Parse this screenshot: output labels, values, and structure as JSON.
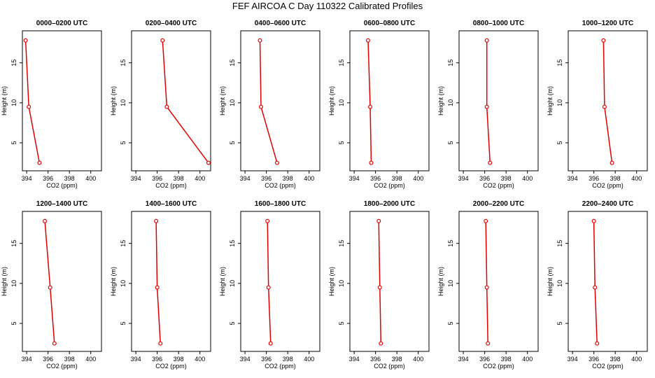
{
  "title": "FEF AIRCOA C  Day 110322  Calibrated Profiles",
  "chart_data": {
    "type": "line",
    "xlabel": "CO2 (ppm)",
    "ylabel": "Height (m)",
    "xlim": [
      393.6,
      401.0
    ],
    "ylim": [
      1.5,
      19.0
    ],
    "xticks": [
      394,
      396,
      398,
      400
    ],
    "yticks": [
      5,
      10,
      15
    ],
    "series_color": "#e00000",
    "panels": [
      {
        "title": "0000–0200 UTC",
        "points": [
          {
            "x": 393.9,
            "y": 17.8
          },
          {
            "x": 394.2,
            "y": 9.5
          },
          {
            "x": 395.2,
            "y": 2.5
          }
        ]
      },
      {
        "title": "0200–0400 UTC",
        "points": [
          {
            "x": 396.5,
            "y": 17.8
          },
          {
            "x": 396.9,
            "y": 9.5
          },
          {
            "x": 400.8,
            "y": 2.5
          }
        ]
      },
      {
        "title": "0400–0600 UTC",
        "points": [
          {
            "x": 395.4,
            "y": 17.8
          },
          {
            "x": 395.5,
            "y": 9.5
          },
          {
            "x": 397.0,
            "y": 2.5
          }
        ]
      },
      {
        "title": "0600–0800 UTC",
        "points": [
          {
            "x": 395.3,
            "y": 17.8
          },
          {
            "x": 395.5,
            "y": 9.5
          },
          {
            "x": 395.6,
            "y": 2.5
          }
        ]
      },
      {
        "title": "0800–1000 UTC",
        "points": [
          {
            "x": 396.2,
            "y": 17.8
          },
          {
            "x": 396.2,
            "y": 9.5
          },
          {
            "x": 396.5,
            "y": 2.5
          }
        ]
      },
      {
        "title": "1000–1200 UTC",
        "points": [
          {
            "x": 396.9,
            "y": 17.8
          },
          {
            "x": 397.0,
            "y": 9.5
          },
          {
            "x": 397.7,
            "y": 2.5
          }
        ]
      },
      {
        "title": "1200–1400 UTC",
        "points": [
          {
            "x": 395.7,
            "y": 17.8
          },
          {
            "x": 396.2,
            "y": 9.5
          },
          {
            "x": 396.6,
            "y": 2.5
          }
        ]
      },
      {
        "title": "1400–1600 UTC",
        "points": [
          {
            "x": 395.9,
            "y": 17.8
          },
          {
            "x": 396.0,
            "y": 9.5
          },
          {
            "x": 396.3,
            "y": 2.5
          }
        ]
      },
      {
        "title": "1600–1800 UTC",
        "points": [
          {
            "x": 396.1,
            "y": 17.8
          },
          {
            "x": 396.2,
            "y": 9.5
          },
          {
            "x": 396.4,
            "y": 2.5
          }
        ]
      },
      {
        "title": "1800–2000 UTC",
        "points": [
          {
            "x": 396.3,
            "y": 17.8
          },
          {
            "x": 396.4,
            "y": 9.5
          },
          {
            "x": 396.5,
            "y": 2.5
          }
        ]
      },
      {
        "title": "2000–2200 UTC",
        "points": [
          {
            "x": 396.1,
            "y": 17.8
          },
          {
            "x": 396.2,
            "y": 9.5
          },
          {
            "x": 396.3,
            "y": 2.5
          }
        ]
      },
      {
        "title": "2200–2400 UTC",
        "points": [
          {
            "x": 396.0,
            "y": 17.8
          },
          {
            "x": 396.1,
            "y": 9.5
          },
          {
            "x": 396.3,
            "y": 2.5
          }
        ]
      }
    ]
  }
}
